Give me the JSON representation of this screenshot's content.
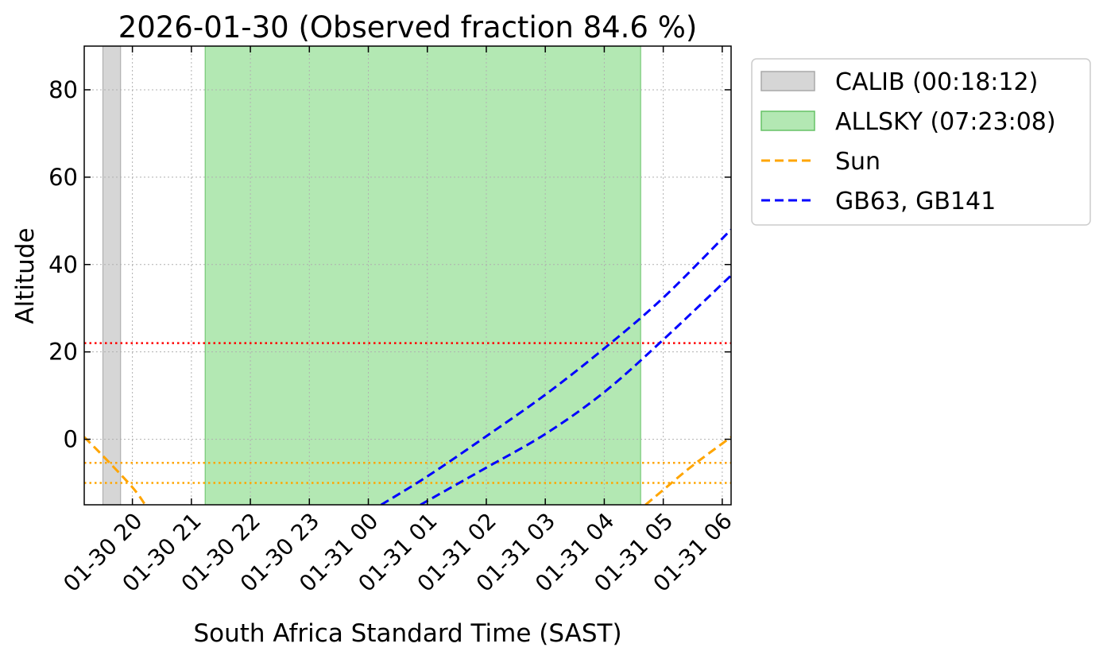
{
  "chart_data": {
    "type": "line",
    "title": "2026-01-30 (Observed fraction 84.6 %)",
    "xlabel": "South Africa Standard Time (SAST)",
    "ylabel": "Altitude",
    "xlim": [
      "2026-01-30 19:11",
      "2026-01-31 06:09"
    ],
    "ylim": [
      -15,
      90
    ],
    "grid": true,
    "legend_position": "outside-right-top",
    "x_ticks": [
      "01-30 20",
      "01-30 21",
      "01-30 22",
      "01-30 23",
      "01-31 00",
      "01-31 01",
      "01-31 02",
      "01-31 03",
      "01-31 04",
      "01-31 05",
      "01-31 06"
    ],
    "x_tick_times": [
      "2026-01-30 20:00",
      "2026-01-30 21:00",
      "2026-01-30 22:00",
      "2026-01-30 23:00",
      "2026-01-31 00:00",
      "2026-01-31 01:00",
      "2026-01-31 02:00",
      "2026-01-31 03:00",
      "2026-01-31 04:00",
      "2026-01-31 05:00",
      "2026-01-31 06:00"
    ],
    "y_ticks": [
      0,
      20,
      40,
      60,
      80
    ],
    "spans": [
      {
        "name": "CALIB (00:18:12)",
        "start": "2026-01-30 19:30",
        "end": "2026-01-30 19:48",
        "color": "#d6d6d6"
      },
      {
        "name": "ALLSKY (07:23:08)",
        "start": "2026-01-30 21:14",
        "end": "2026-01-31 04:37",
        "color": "#b3e8b3"
      }
    ],
    "series": [
      {
        "name": "Sun",
        "color": "#ffa500",
        "style": "dashed",
        "segments": [
          {
            "x": [
              "2026-01-30 19:11",
              "2026-01-30 19:30",
              "2026-01-30 20:00",
              "2026-01-30 20:13"
            ],
            "y": [
              0.5,
              -3.8,
              -11.0,
              -15.0
            ]
          },
          {
            "x": [
              "2026-01-31 04:42",
              "2026-01-31 05:00",
              "2026-01-31 05:30",
              "2026-01-31 06:09"
            ],
            "y": [
              -15.0,
              -11.6,
              -6.0,
              0.5
            ]
          }
        ]
      },
      {
        "name": "GB63, GB141",
        "color": "#0000ff",
        "style": "dashed",
        "segments": [
          {
            "x": [
              "2026-01-31 00:13",
              "2026-01-31 01:00",
              "2026-01-31 02:00",
              "2026-01-31 03:00",
              "2026-01-31 04:00",
              "2026-01-31 05:00",
              "2026-01-31 06:09"
            ],
            "y": [
              -15.0,
              -8.5,
              0.7,
              10.2,
              20.8,
              32.4,
              48.0
            ]
          }
        ]
      },
      {
        "name": "",
        "color": "#0000ff",
        "style": "dashed",
        "segments": [
          {
            "x": [
              "2026-01-31 00:53",
              "2026-01-31 01:30",
              "2026-01-31 02:00",
              "2026-01-31 03:00",
              "2026-01-31 04:00",
              "2026-01-31 05:00",
              "2026-01-31 06:09"
            ],
            "y": [
              -15.0,
              -10.3,
              -6.5,
              1.2,
              10.8,
              22.8,
              37.5
            ]
          }
        ]
      }
    ],
    "hlines": [
      {
        "y": 22,
        "color": "#ff0000",
        "style": "dotted"
      },
      {
        "y": -5.4,
        "color": "#ffa500",
        "style": "dotted"
      },
      {
        "y": -10,
        "color": "#ffa500",
        "style": "dotted"
      }
    ]
  }
}
